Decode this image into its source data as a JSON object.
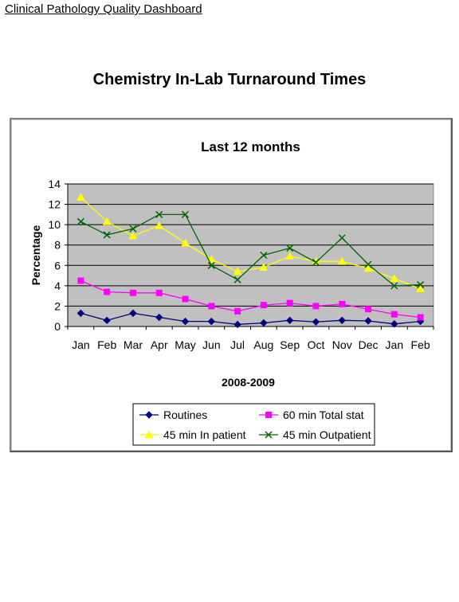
{
  "header": {
    "link_text": "Clinical Pathology Quality Dashboard"
  },
  "page_title": "Chemistry In-Lab Turnaround Times",
  "chart_data": {
    "type": "line",
    "title": "Last 12 months",
    "xlabel": "2008-2009",
    "ylabel": "Percentage",
    "ylim": [
      0,
      14
    ],
    "yticks": [
      0,
      2,
      4,
      6,
      8,
      10,
      12,
      14
    ],
    "grid": "horizontal",
    "legend_position": "bottom",
    "categories": [
      "Jan",
      "Feb",
      "Mar",
      "Apr",
      "May",
      "Jun",
      "Jul",
      "Aug",
      "Sep",
      "Oct",
      "Nov",
      "Dec",
      "Jan",
      "Feb"
    ],
    "series": [
      {
        "name": "Routines",
        "color": "#000080",
        "marker": "diamond",
        "values": [
          1.3,
          0.6,
          1.3,
          0.9,
          0.5,
          0.5,
          0.2,
          0.35,
          0.6,
          0.45,
          0.6,
          0.55,
          0.25,
          0.5
        ]
      },
      {
        "name": "60 min Total stat",
        "color": "#ff00ff",
        "marker": "square",
        "values": [
          4.5,
          3.4,
          3.3,
          3.3,
          2.7,
          2.0,
          1.5,
          2.1,
          2.3,
          2.0,
          2.2,
          1.7,
          1.2,
          0.9
        ]
      },
      {
        "name": "45 min In patient",
        "color": "#ffff00",
        "marker": "triangle",
        "values": [
          12.7,
          10.3,
          8.9,
          9.9,
          8.2,
          6.6,
          5.4,
          5.8,
          6.9,
          6.4,
          6.4,
          5.7,
          4.7,
          3.7
        ]
      },
      {
        "name": "45 min Outpatient",
        "color": "#006400",
        "marker": "x",
        "values": [
          10.3,
          9.0,
          9.6,
          11.0,
          11.0,
          6.0,
          4.6,
          7.0,
          7.7,
          6.3,
          8.7,
          6.1,
          4.0,
          4.1
        ]
      }
    ]
  }
}
